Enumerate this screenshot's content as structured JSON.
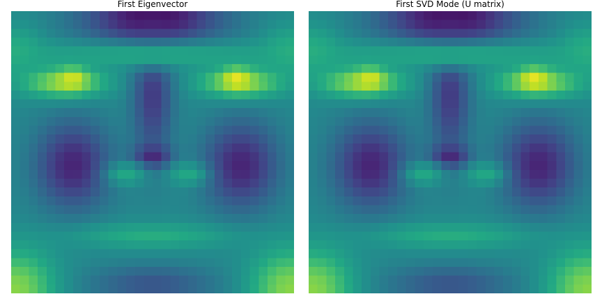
{
  "figure": {
    "colormap": "viridis",
    "colormap_stops": [
      "#440154",
      "#482475",
      "#414487",
      "#355f8d",
      "#2a788e",
      "#21918c",
      "#22a884",
      "#44bf70",
      "#7ad151",
      "#bddf26",
      "#fde725"
    ]
  },
  "chart_data": [
    {
      "type": "heatmap",
      "title": "First Eigenvector",
      "xlabel": "",
      "ylabel": "",
      "axes": "off",
      "grid": false,
      "legend": "none",
      "rows": 32,
      "cols": 32,
      "value_range": [
        0,
        1
      ],
      "feature_map": {
        "base": 0.47,
        "features": [
          {
            "kind": "forehead-dark",
            "row": 0,
            "col": 15.5,
            "value": 0.02,
            "sigma_row": 3.0,
            "sigma_col": 5.5
          },
          {
            "kind": "nose-bridge",
            "row": 8.5,
            "col": 15.5,
            "value": 0.16,
            "sigma_row": 5.5,
            "sigma_col": 1.6
          },
          {
            "kind": "eye-socket-left",
            "row": 17.0,
            "col": 6.5,
            "value": 0.1,
            "sigma_row": 3.5,
            "sigma_col": 3.0
          },
          {
            "kind": "eye-socket-right",
            "row": 17.0,
            "col": 25.5,
            "value": 0.1,
            "sigma_row": 3.5,
            "sigma_col": 3.0
          },
          {
            "kind": "brow-bright-left",
            "row": 7.5,
            "col": 5.5,
            "value": 0.87,
            "sigma_row": 1.2,
            "sigma_col": 3.2
          },
          {
            "kind": "brow-peak-left",
            "row": 7.0,
            "col": 6.5,
            "value": 0.97,
            "sigma_row": 0.8,
            "sigma_col": 1.0
          },
          {
            "kind": "brow-bright-right",
            "row": 7.5,
            "col": 25.5,
            "value": 0.87,
            "sigma_row": 1.2,
            "sigma_col": 3.2
          },
          {
            "kind": "brow-peak-right",
            "row": 7.0,
            "col": 25.0,
            "value": 1.0,
            "sigma_row": 0.8,
            "sigma_col": 1.0
          },
          {
            "kind": "brow-band",
            "row": 4.5,
            "col": 15.5,
            "value": 0.6,
            "sigma_row": 1.2,
            "sigma_col": 14.0
          },
          {
            "kind": "nostril",
            "row": 16.0,
            "col": 15.5,
            "value": 0.1,
            "sigma_row": 0.9,
            "sigma_col": 1.5
          },
          {
            "kind": "cheek-left",
            "row": 18.0,
            "col": 12.5,
            "value": 0.6,
            "sigma_row": 0.9,
            "sigma_col": 1.6
          },
          {
            "kind": "cheek-right",
            "row": 18.0,
            "col": 19.5,
            "value": 0.6,
            "sigma_row": 0.9,
            "sigma_col": 1.6
          },
          {
            "kind": "mouth-band",
            "row": 25.0,
            "col": 15.5,
            "value": 0.62,
            "sigma_row": 1.0,
            "sigma_col": 6.5
          },
          {
            "kind": "chin",
            "row": 30.5,
            "col": 15.5,
            "value": 0.26,
            "sigma_row": 1.5,
            "sigma_col": 5.0
          },
          {
            "kind": "corner-bottom-left",
            "row": 31,
            "col": 0,
            "value": 0.82,
            "sigma_row": 3.0,
            "sigma_col": 3.0
          },
          {
            "kind": "corner-bottom-right",
            "row": 31,
            "col": 31,
            "value": 0.82,
            "sigma_row": 3.0,
            "sigma_col": 3.0
          },
          {
            "kind": "temple-left",
            "row": 4.0,
            "col": 0,
            "value": 0.62,
            "sigma_row": 2.0,
            "sigma_col": 2.0
          },
          {
            "kind": "temple-right",
            "row": 4.0,
            "col": 31,
            "value": 0.62,
            "sigma_row": 2.0,
            "sigma_col": 2.0
          }
        ]
      }
    },
    {
      "type": "heatmap",
      "title": "First SVD Mode (U matrix)",
      "xlabel": "",
      "ylabel": "",
      "axes": "off",
      "grid": false,
      "legend": "none",
      "rows": 32,
      "cols": 32,
      "value_range": [
        0,
        1
      ],
      "feature_map": {
        "base": 0.47,
        "features": [
          {
            "kind": "forehead-dark",
            "row": 0,
            "col": 15.5,
            "value": 0.02,
            "sigma_row": 3.0,
            "sigma_col": 5.5
          },
          {
            "kind": "nose-bridge",
            "row": 8.5,
            "col": 15.5,
            "value": 0.16,
            "sigma_row": 5.5,
            "sigma_col": 1.6
          },
          {
            "kind": "eye-socket-left",
            "row": 17.0,
            "col": 6.5,
            "value": 0.1,
            "sigma_row": 3.5,
            "sigma_col": 3.0
          },
          {
            "kind": "eye-socket-right",
            "row": 17.0,
            "col": 25.5,
            "value": 0.1,
            "sigma_row": 3.5,
            "sigma_col": 3.0
          },
          {
            "kind": "brow-bright-left",
            "row": 7.5,
            "col": 5.5,
            "value": 0.87,
            "sigma_row": 1.2,
            "sigma_col": 3.2
          },
          {
            "kind": "brow-peak-left",
            "row": 7.0,
            "col": 6.5,
            "value": 0.97,
            "sigma_row": 0.8,
            "sigma_col": 1.0
          },
          {
            "kind": "brow-bright-right",
            "row": 7.5,
            "col": 25.5,
            "value": 0.87,
            "sigma_row": 1.2,
            "sigma_col": 3.2
          },
          {
            "kind": "brow-peak-right",
            "row": 7.0,
            "col": 25.0,
            "value": 1.0,
            "sigma_row": 0.8,
            "sigma_col": 1.0
          },
          {
            "kind": "brow-band",
            "row": 4.5,
            "col": 15.5,
            "value": 0.6,
            "sigma_row": 1.2,
            "sigma_col": 14.0
          },
          {
            "kind": "nostril",
            "row": 16.0,
            "col": 15.5,
            "value": 0.1,
            "sigma_row": 0.9,
            "sigma_col": 1.5
          },
          {
            "kind": "cheek-left",
            "row": 18.0,
            "col": 12.5,
            "value": 0.6,
            "sigma_row": 0.9,
            "sigma_col": 1.6
          },
          {
            "kind": "cheek-right",
            "row": 18.0,
            "col": 19.5,
            "value": 0.6,
            "sigma_row": 0.9,
            "sigma_col": 1.6
          },
          {
            "kind": "mouth-band",
            "row": 25.0,
            "col": 15.5,
            "value": 0.62,
            "sigma_row": 1.0,
            "sigma_col": 6.5
          },
          {
            "kind": "chin",
            "row": 30.5,
            "col": 15.5,
            "value": 0.26,
            "sigma_row": 1.5,
            "sigma_col": 5.0
          },
          {
            "kind": "corner-bottom-left",
            "row": 31,
            "col": 0,
            "value": 0.82,
            "sigma_row": 3.0,
            "sigma_col": 3.0
          },
          {
            "kind": "corner-bottom-right",
            "row": 31,
            "col": 31,
            "value": 0.82,
            "sigma_row": 3.0,
            "sigma_col": 3.0
          },
          {
            "kind": "temple-left",
            "row": 4.0,
            "col": 0,
            "value": 0.62,
            "sigma_row": 2.0,
            "sigma_col": 2.0
          },
          {
            "kind": "temple-right",
            "row": 4.0,
            "col": 31,
            "value": 0.62,
            "sigma_row": 2.0,
            "sigma_col": 2.0
          }
        ]
      }
    }
  ]
}
